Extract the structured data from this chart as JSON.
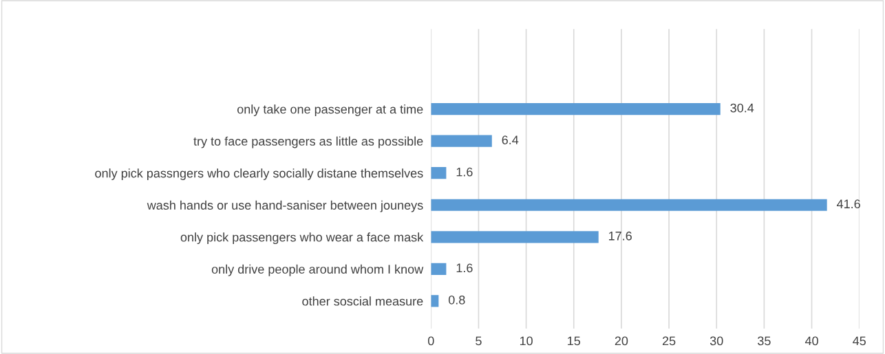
{
  "chart_data": {
    "type": "bar",
    "orientation": "horizontal",
    "categories": [
      "only take one passenger at a time",
      "try to face passengers as little as possible",
      "only pick passngers who clearly socially distane themselves",
      "wash hands or use hand-saniser between jouneys",
      "only pick passengers who wear a face mask",
      "only drive people around whom I know",
      "other soscial measure"
    ],
    "values": [
      30.4,
      6.4,
      1.6,
      41.6,
      17.6,
      1.6,
      0.8
    ],
    "color": "#5b9bd5",
    "xlim": [
      0,
      45
    ],
    "xticks": [
      0,
      5,
      10,
      15,
      20,
      25,
      30,
      35,
      40,
      45
    ],
    "grid": "x",
    "data_labels": true
  }
}
